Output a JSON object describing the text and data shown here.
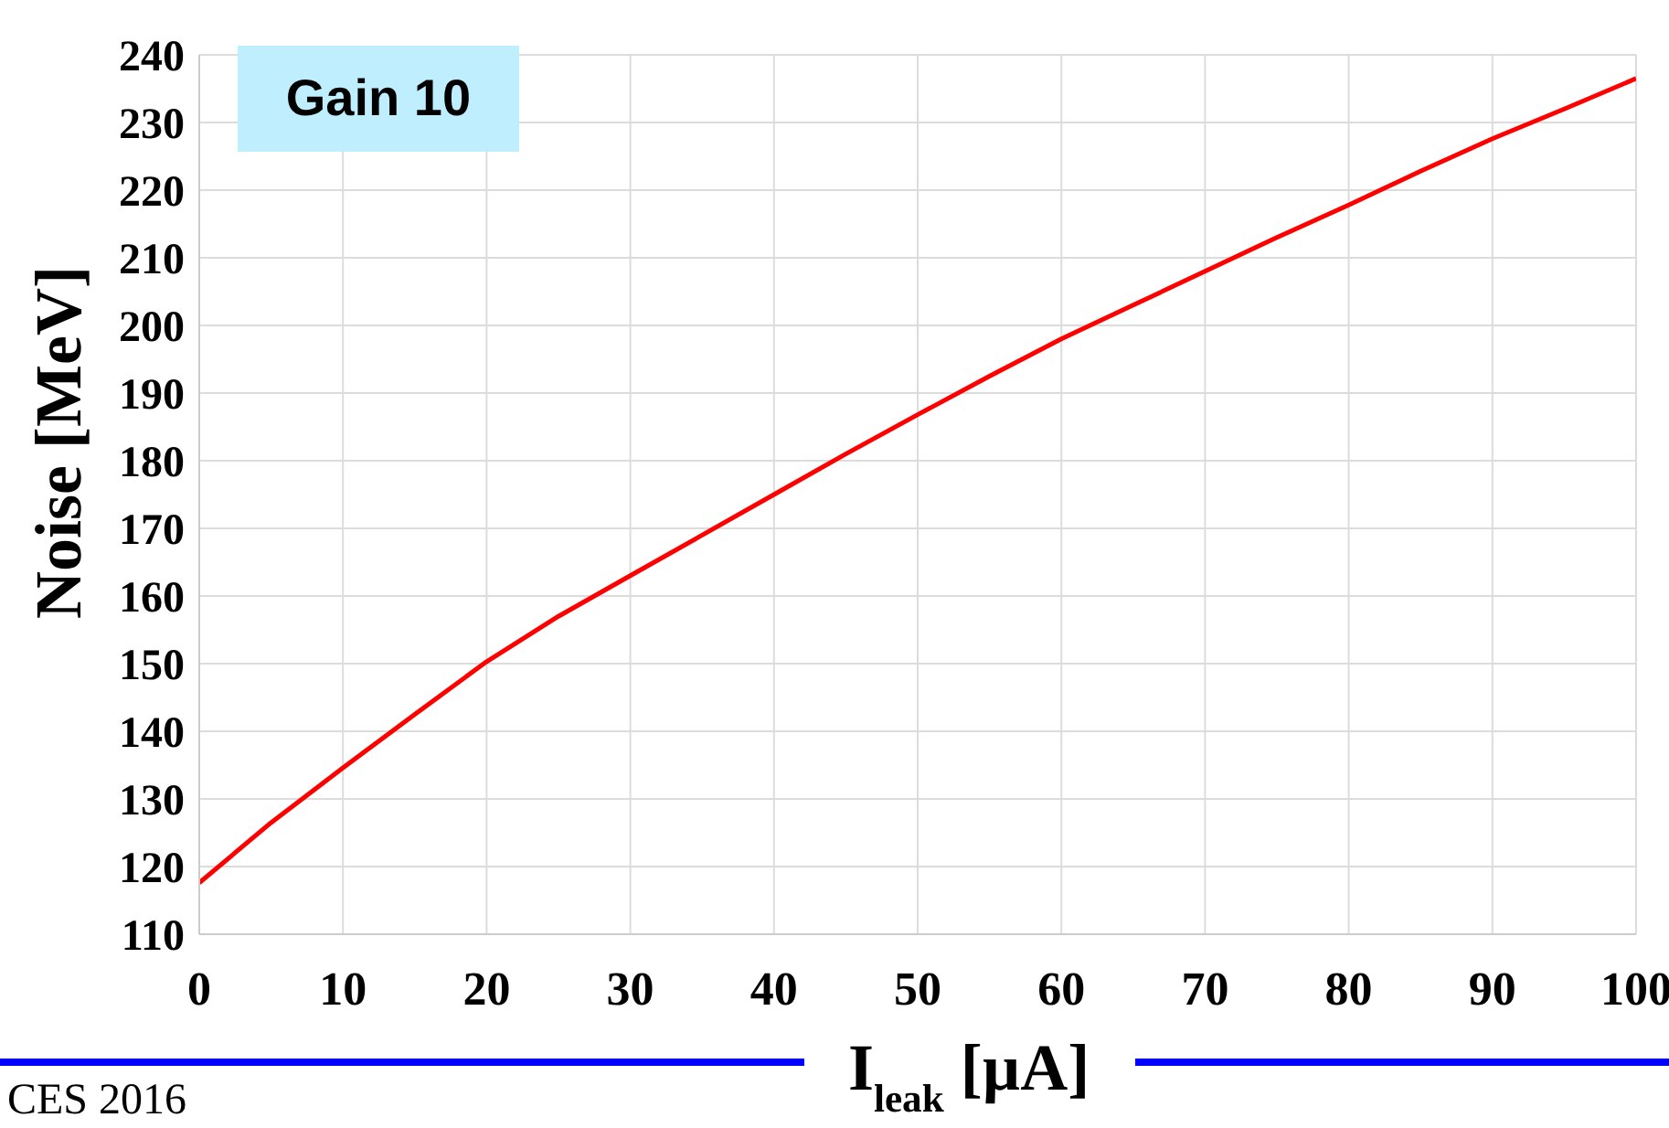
{
  "chart_data": {
    "type": "line",
    "xlabel": "I$_{leak}$ [µA]",
    "ylabel": "Noise [MeV]",
    "annotations": [
      "Gain 10",
      "CES 2016"
    ],
    "x": [
      0,
      5,
      10,
      15,
      20,
      25,
      30,
      35,
      40,
      45,
      50,
      55,
      60,
      65,
      70,
      75,
      80,
      85,
      90,
      95,
      100
    ],
    "series": [
      {
        "color": "#ff0000",
        "values": [
          117.6,
          126.5,
          134.6,
          142.5,
          150.3,
          157,
          163,
          169,
          175,
          181,
          186.8,
          192.5,
          198,
          203,
          208,
          213,
          217.8,
          222.8,
          227.6,
          232,
          236.5
        ]
      }
    ],
    "xlim": [
      0,
      100
    ],
    "xticks": [
      0,
      10,
      20,
      30,
      40,
      50,
      60,
      70,
      80,
      90,
      100
    ],
    "ylim": [
      110,
      240
    ],
    "yticks": [
      110,
      120,
      130,
      140,
      150,
      160,
      170,
      180,
      190,
      200,
      210,
      220,
      230,
      240
    ],
    "grid": true,
    "marker": "none",
    "line_style": "solid"
  }
}
